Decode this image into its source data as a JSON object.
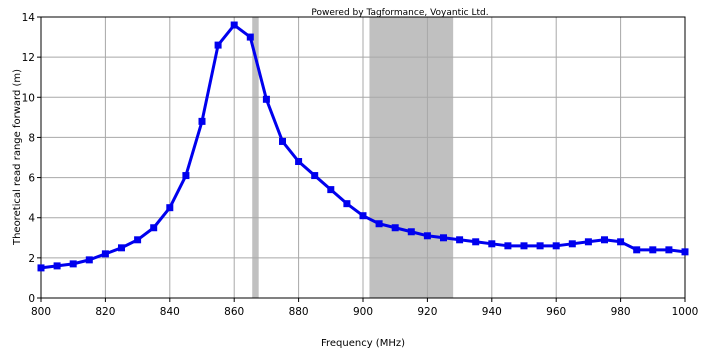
{
  "chart_data": {
    "type": "line",
    "title": "",
    "credit": "Powered by Tagformance, Voyantic Ltd.",
    "xlabel": "Frequency (MHz)",
    "ylabel": "Theoretical read range forward (m)",
    "xlim": [
      800,
      1000
    ],
    "ylim": [
      0,
      14
    ],
    "xticks": [
      800,
      820,
      840,
      860,
      880,
      900,
      920,
      940,
      960,
      980,
      1000
    ],
    "yticks": [
      0,
      2,
      4,
      6,
      8,
      10,
      12,
      14
    ],
    "grid": true,
    "legend": "none",
    "shaded_bands": [
      {
        "from": 865.6,
        "to": 867.6,
        "color": "#c0c0c0"
      },
      {
        "from": 902,
        "to": 928,
        "color": "#c0c0c0"
      }
    ],
    "series": [
      {
        "color": "#0000ee",
        "x": [
          800,
          805,
          810,
          815,
          820,
          825,
          830,
          835,
          840,
          845,
          850,
          855,
          860,
          865,
          870,
          875,
          880,
          885,
          890,
          895,
          900,
          905,
          910,
          915,
          920,
          925,
          930,
          935,
          940,
          945,
          950,
          955,
          960,
          965,
          970,
          975,
          980,
          985,
          990,
          995,
          1000
        ],
        "y": [
          1.5,
          1.6,
          1.7,
          1.9,
          2.2,
          2.5,
          2.9,
          3.5,
          4.5,
          6.1,
          8.8,
          12.6,
          13.6,
          13.0,
          9.9,
          7.8,
          6.8,
          6.1,
          5.4,
          4.7,
          4.1,
          3.7,
          3.5,
          3.3,
          3.1,
          3.0,
          2.9,
          2.8,
          2.7,
          2.6,
          2.6,
          2.6,
          2.6,
          2.7,
          2.8,
          2.9,
          2.8,
          2.4,
          2.4,
          2.4,
          2.3
        ]
      }
    ]
  }
}
